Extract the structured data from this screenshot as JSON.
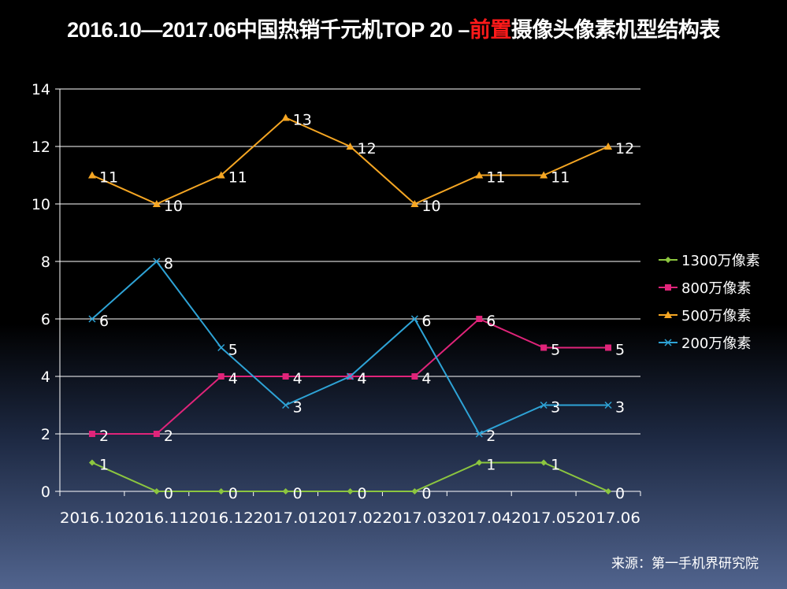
{
  "title": {
    "prefix": "2016.10—2017.06中国热销千元机TOP 20 –",
    "highlight": "前置",
    "suffix": "摄像头像素机型结构表"
  },
  "source": "来源：第一手机界研究院",
  "colors": {
    "background": "#000000",
    "grid": "#ffffff",
    "text": "#ffffff",
    "highlight": "#ff1a1a"
  },
  "chart_data": {
    "type": "line",
    "categories": [
      "2016.10",
      "2016.11",
      "2016.12",
      "2017.01",
      "2017.02",
      "2017.03",
      "2017.04",
      "2017.05",
      "2017.06"
    ],
    "ylim": [
      0,
      14
    ],
    "yticks": [
      0,
      2,
      4,
      6,
      8,
      10,
      12,
      14
    ],
    "grid": true,
    "legend": "right",
    "series": [
      {
        "name": "1300万像素",
        "color": "#8cc63f",
        "marker": "diamond",
        "values": [
          1,
          0,
          0,
          0,
          0,
          0,
          1,
          1,
          0
        ]
      },
      {
        "name": "800万像素",
        "color": "#e0247a",
        "marker": "square",
        "values": [
          2,
          2,
          4,
          4,
          4,
          4,
          6,
          5,
          5
        ]
      },
      {
        "name": "500万像素",
        "color": "#f5a623",
        "marker": "triangle",
        "values": [
          11,
          10,
          11,
          13,
          12,
          10,
          11,
          11,
          12
        ]
      },
      {
        "name": "200万像素",
        "color": "#2ea3d6",
        "marker": "x",
        "values": [
          6,
          8,
          5,
          3,
          4,
          6,
          2,
          3,
          3
        ]
      }
    ]
  }
}
